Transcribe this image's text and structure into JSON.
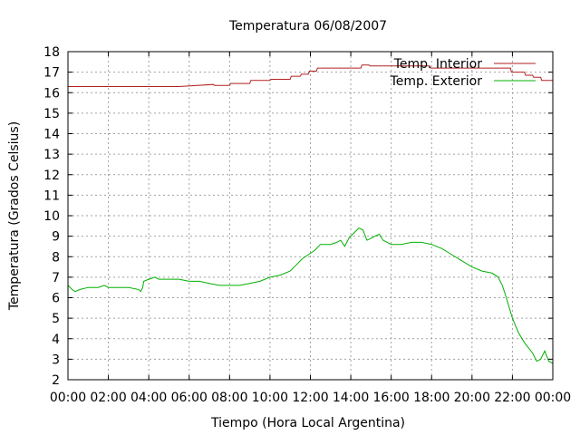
{
  "chart_data": {
    "type": "line",
    "title": "Temperatura 06/08/2007",
    "xlabel": "Tiempo (Hora Local Argentina)",
    "ylabel": "Temperatura (Grados Celsius)",
    "xlim": [
      0,
      24
    ],
    "ylim": [
      2,
      18
    ],
    "x_tick_labels": [
      "00:00",
      "02:00",
      "04:00",
      "06:00",
      "08:00",
      "10:00",
      "12:00",
      "14:00",
      "16:00",
      "18:00",
      "20:00",
      "22:00",
      "00:00"
    ],
    "y_ticks": [
      2,
      3,
      4,
      5,
      6,
      7,
      8,
      9,
      10,
      11,
      12,
      13,
      14,
      15,
      16,
      17,
      18
    ],
    "grid": true,
    "legend_position": "top-right",
    "series": [
      {
        "name": "Temp. Interior",
        "color": "#b22222",
        "x": [
          0,
          5.5,
          7.2,
          7.25,
          8.0,
          8.05,
          9.0,
          9.05,
          10.0,
          10.05,
          11.0,
          11.05,
          11.5,
          11.55,
          11.9,
          11.95,
          12.3,
          12.35,
          14.5,
          14.55,
          14.9,
          14.95,
          17.9,
          17.95,
          21.9,
          21.95,
          22.6,
          22.65,
          23.0,
          23.05,
          23.4,
          23.45,
          24.0
        ],
        "values": [
          16.3,
          16.3,
          16.4,
          16.35,
          16.35,
          16.45,
          16.45,
          16.6,
          16.6,
          16.65,
          16.65,
          16.8,
          16.8,
          16.9,
          16.9,
          17.05,
          17.05,
          17.2,
          17.2,
          17.35,
          17.35,
          17.3,
          17.3,
          17.2,
          17.2,
          17.0,
          17.0,
          16.85,
          16.85,
          16.75,
          16.75,
          16.6,
          16.6
        ]
      },
      {
        "name": "Temp. Exterior",
        "color": "#00b000",
        "x": [
          0,
          0.2,
          0.35,
          0.6,
          1.0,
          1.5,
          1.8,
          2.0,
          3.0,
          3.5,
          3.6,
          3.7,
          3.75,
          4.0,
          4.3,
          4.5,
          5.0,
          5.5,
          6.0,
          6.5,
          7.0,
          7.5,
          8.0,
          8.5,
          9.0,
          9.5,
          10.0,
          10.5,
          11.0,
          11.3,
          11.6,
          11.9,
          12.2,
          12.5,
          12.8,
          13.0,
          13.3,
          13.5,
          13.7,
          13.9,
          14.2,
          14.4,
          14.6,
          14.8,
          15.0,
          15.2,
          15.4,
          15.6,
          15.8,
          16.0,
          16.5,
          17.0,
          17.5,
          18.0,
          18.5,
          19.0,
          19.5,
          20.0,
          20.5,
          21.0,
          21.3,
          21.5,
          21.7,
          22.0,
          22.3,
          22.6,
          23.0,
          23.2,
          23.4,
          23.6,
          23.8,
          24.0
        ],
        "values": [
          6.6,
          6.4,
          6.3,
          6.4,
          6.5,
          6.5,
          6.6,
          6.5,
          6.5,
          6.4,
          6.3,
          6.5,
          6.8,
          6.9,
          7.0,
          6.9,
          6.9,
          6.9,
          6.8,
          6.8,
          6.7,
          6.6,
          6.6,
          6.6,
          6.7,
          6.8,
          7.0,
          7.1,
          7.3,
          7.6,
          7.9,
          8.1,
          8.3,
          8.6,
          8.6,
          8.6,
          8.7,
          8.8,
          8.5,
          8.9,
          9.2,
          9.4,
          9.3,
          8.8,
          8.9,
          9.0,
          9.1,
          8.8,
          8.7,
          8.6,
          8.6,
          8.7,
          8.7,
          8.6,
          8.4,
          8.1,
          7.8,
          7.5,
          7.3,
          7.2,
          7.0,
          6.6,
          6.0,
          5.0,
          4.3,
          3.8,
          3.3,
          2.9,
          3.0,
          3.4,
          2.9,
          2.8
        ]
      }
    ]
  }
}
